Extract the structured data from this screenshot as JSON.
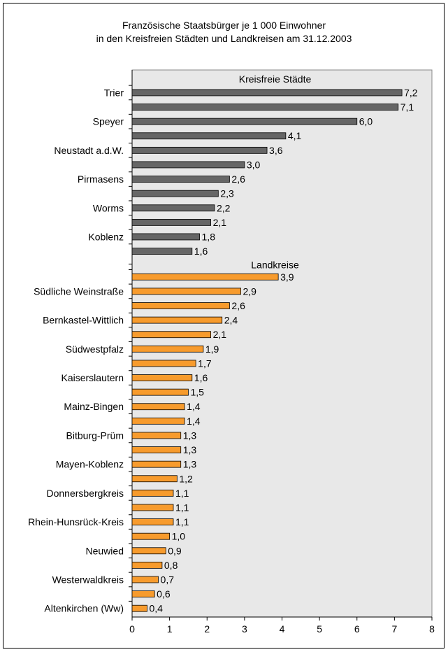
{
  "chart_data": {
    "type": "bar",
    "orientation": "horizontal",
    "title": "Französische Staatsbürger je 1 000 Einwohner",
    "subtitle": "in den Kreisfreien Städten und Landkreisen am 31.12.2003",
    "xlim": [
      0,
      8
    ],
    "xticks": [
      "0",
      "1",
      "2",
      "3",
      "4",
      "5",
      "6",
      "7",
      "8"
    ],
    "grid": false,
    "plot_background": "#e8e8e8",
    "groups": [
      {
        "name": "Kreisfreie Städte",
        "color": "#666666",
        "bars": [
          {
            "label": "Trier",
            "value": 7.2,
            "value_label": "7,2"
          },
          {
            "label": "",
            "value": 7.1,
            "value_label": "7,1"
          },
          {
            "label": "Speyer",
            "value": 6.0,
            "value_label": "6,0"
          },
          {
            "label": "",
            "value": 4.1,
            "value_label": "4,1"
          },
          {
            "label": "Neustadt a.d.W.",
            "value": 3.6,
            "value_label": "3,6"
          },
          {
            "label": "",
            "value": 3.0,
            "value_label": "3,0"
          },
          {
            "label": "Pirmasens",
            "value": 2.6,
            "value_label": "2,6"
          },
          {
            "label": "",
            "value": 2.3,
            "value_label": "2,3"
          },
          {
            "label": "Worms",
            "value": 2.2,
            "value_label": "2,2"
          },
          {
            "label": "",
            "value": 2.1,
            "value_label": "2,1"
          },
          {
            "label": "Koblenz",
            "value": 1.8,
            "value_label": "1,8"
          },
          {
            "label": "",
            "value": 1.6,
            "value_label": "1,6"
          }
        ]
      },
      {
        "name": "Landkreise",
        "color": "#f79b2d",
        "bars": [
          {
            "label": "",
            "value": 3.9,
            "value_label": "3,9"
          },
          {
            "label": "Südliche Weinstraße",
            "value": 2.9,
            "value_label": "2,9"
          },
          {
            "label": "",
            "value": 2.6,
            "value_label": "2,6"
          },
          {
            "label": "Bernkastel-Wittlich",
            "value": 2.4,
            "value_label": "2,4"
          },
          {
            "label": "",
            "value": 2.1,
            "value_label": "2,1"
          },
          {
            "label": "Südwestpfalz",
            "value": 1.9,
            "value_label": "1,9"
          },
          {
            "label": "",
            "value": 1.7,
            "value_label": "1,7"
          },
          {
            "label": "Kaiserslautern",
            "value": 1.6,
            "value_label": "1,6"
          },
          {
            "label": "",
            "value": 1.5,
            "value_label": "1,5"
          },
          {
            "label": "Mainz-Bingen",
            "value": 1.4,
            "value_label": "1,4"
          },
          {
            "label": "",
            "value": 1.4,
            "value_label": "1,4"
          },
          {
            "label": "Bitburg-Prüm",
            "value": 1.3,
            "value_label": "1,3"
          },
          {
            "label": "",
            "value": 1.3,
            "value_label": "1,3"
          },
          {
            "label": "Mayen-Koblenz",
            "value": 1.3,
            "value_label": "1,3"
          },
          {
            "label": "",
            "value": 1.2,
            "value_label": "1,2"
          },
          {
            "label": "Donnersbergkreis",
            "value": 1.1,
            "value_label": "1,1"
          },
          {
            "label": "",
            "value": 1.1,
            "value_label": "1,1"
          },
          {
            "label": "Rhein-Hunsrück-Kreis",
            "value": 1.1,
            "value_label": "1,1"
          },
          {
            "label": "",
            "value": 1.0,
            "value_label": "1,0"
          },
          {
            "label": "Neuwied",
            "value": 0.9,
            "value_label": "0,9"
          },
          {
            "label": "",
            "value": 0.8,
            "value_label": "0,8"
          },
          {
            "label": "Westerwaldkreis",
            "value": 0.7,
            "value_label": "0,7"
          },
          {
            "label": "",
            "value": 0.6,
            "value_label": "0,6"
          },
          {
            "label": "Altenkirchen (Ww)",
            "value": 0.4,
            "value_label": "0,4"
          }
        ]
      }
    ]
  }
}
